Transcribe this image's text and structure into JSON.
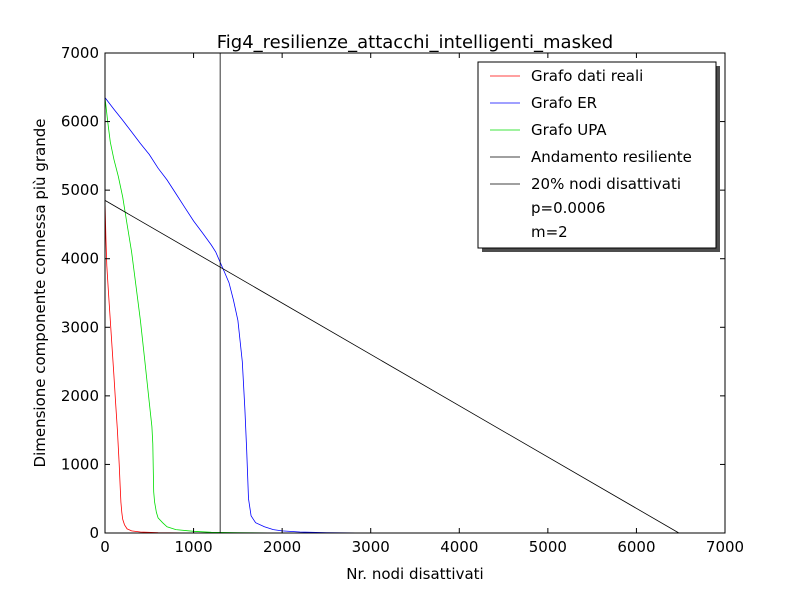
{
  "chart_data": {
    "type": "line",
    "title": "Fig4_resilienze_attacchi_intelligenti_masked",
    "xlabel": "Nr. nodi disattivati",
    "ylabel": "Dimensione componente connessa più grande",
    "xlim": [
      0,
      7000
    ],
    "ylim": [
      0,
      7000
    ],
    "xticks": [
      "0",
      "1000",
      "2000",
      "3000",
      "4000",
      "5000",
      "6000",
      "7000"
    ],
    "yticks": [
      "0",
      "1000",
      "2000",
      "3000",
      "4000",
      "5000",
      "6000",
      "7000"
    ],
    "grid": false,
    "legend_position": "top-right",
    "series": [
      {
        "name": "Grafo dati reali",
        "color": "#ff0000",
        "x": [
          0,
          10,
          20,
          40,
          60,
          80,
          100,
          120,
          140,
          150,
          160,
          170,
          180,
          190,
          200,
          220,
          250,
          300,
          400,
          600,
          1000,
          7000
        ],
        "y": [
          4850,
          4300,
          3900,
          3500,
          3100,
          2700,
          2300,
          1900,
          1500,
          1250,
          1000,
          700,
          450,
          300,
          200,
          120,
          60,
          30,
          15,
          5,
          0,
          0
        ]
      },
      {
        "name": "Grafo ER",
        "color": "#0000ff",
        "x": [
          0,
          100,
          200,
          300,
          400,
          500,
          600,
          700,
          800,
          900,
          1000,
          1100,
          1200,
          1250,
          1300,
          1350,
          1400,
          1450,
          1500,
          1550,
          1580,
          1600,
          1620,
          1650,
          1700,
          1800,
          1900,
          2000,
          2200,
          2500,
          3000,
          7000
        ],
        "y": [
          6350,
          6180,
          6020,
          5850,
          5680,
          5520,
          5320,
          5150,
          4950,
          4750,
          4550,
          4380,
          4200,
          4100,
          3950,
          3800,
          3650,
          3400,
          3100,
          2500,
          1800,
          1200,
          500,
          250,
          150,
          90,
          50,
          30,
          15,
          5,
          0,
          0
        ]
      },
      {
        "name": "Grafo UPA",
        "color": "#00dd00",
        "x": [
          0,
          30,
          60,
          100,
          150,
          200,
          250,
          300,
          350,
          400,
          450,
          500,
          530,
          540,
          545,
          550,
          560,
          580,
          600,
          650,
          700,
          800,
          1000,
          1200,
          1500,
          2000,
          7000
        ],
        "y": [
          6350,
          6000,
          5700,
          5450,
          5200,
          4900,
          4500,
          4100,
          3600,
          3100,
          2500,
          1900,
          1550,
          1300,
          900,
          600,
          450,
          300,
          220,
          150,
          90,
          50,
          25,
          10,
          5,
          0,
          0
        ]
      },
      {
        "name": "Andamento resiliente",
        "color": "#000000",
        "x": [
          0,
          6480
        ],
        "y": [
          4850,
          0
        ]
      }
    ],
    "vline": {
      "name": "20% nodi disattivati",
      "color": "#000000",
      "x": 1300
    },
    "legend_extra": [
      "p=0.0006",
      "m=2"
    ]
  }
}
